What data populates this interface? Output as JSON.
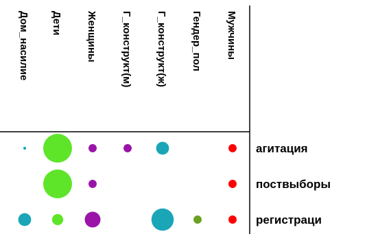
{
  "chart_data": {
    "type": "scatter",
    "columns": [
      "Дом_насилие",
      "Дети",
      "Женщины",
      "Г_конструкт(м)",
      "Г_конструкт(ж)",
      "Гендер_пол",
      "Мужчины"
    ],
    "rows": [
      "агитация",
      "поствыборы",
      "регистраци"
    ],
    "column_colors": [
      "#1aa6b7",
      "#5ee52a",
      "#9a14a8",
      "#9a14a8",
      "#1aa6b7",
      "#6aa121",
      "#ff0000"
    ],
    "values": [
      [
        1,
        100,
        8,
        8,
        20,
        0,
        8
      ],
      [
        0,
        100,
        8,
        0,
        0,
        0,
        8
      ],
      [
        20,
        15,
        30,
        0,
        60,
        8,
        8
      ]
    ],
    "grid": false
  }
}
